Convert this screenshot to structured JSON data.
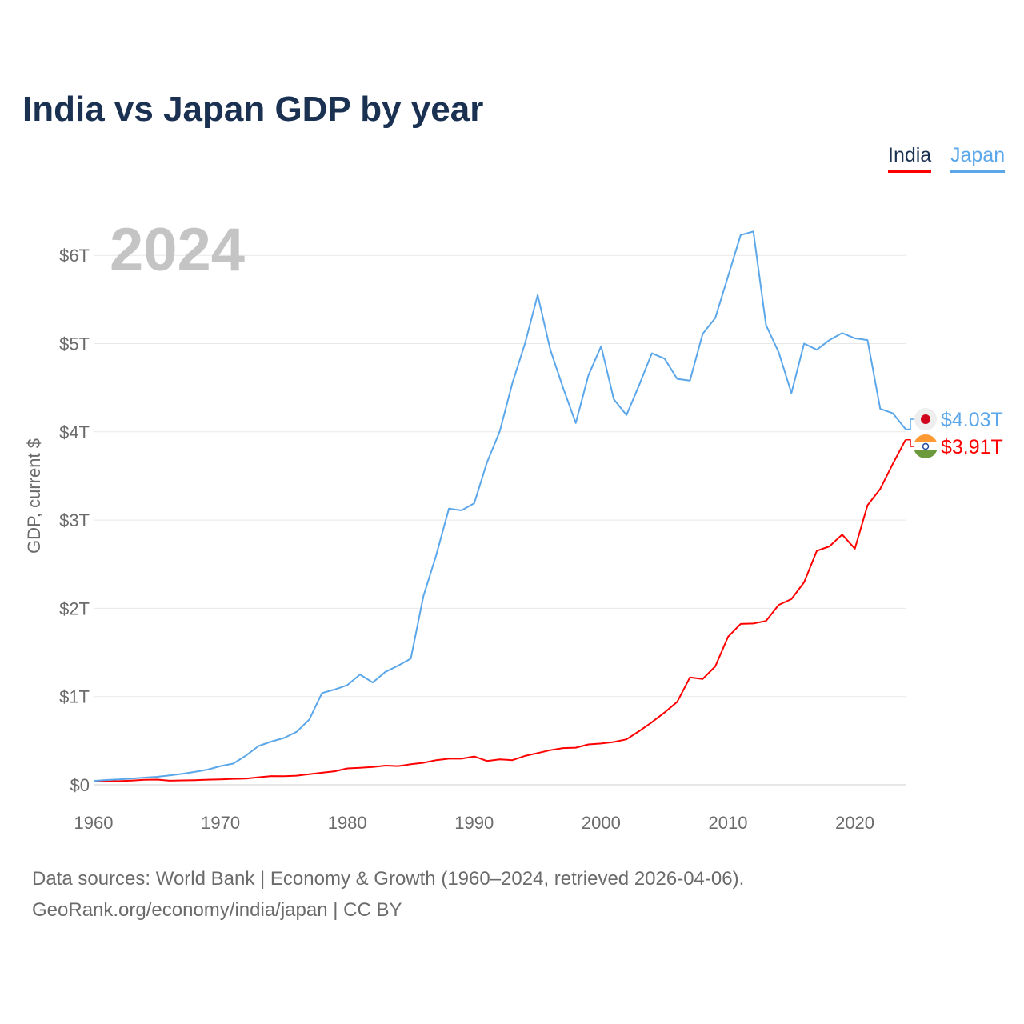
{
  "chart_data": {
    "type": "line",
    "title": "India vs Japan GDP by year",
    "year_label": "2024",
    "xlabel": "",
    "ylabel": "GDP, current $",
    "xlim": [
      1960,
      2024
    ],
    "ylim": [
      0,
      6.3
    ],
    "x_ticks": [
      1960,
      1970,
      1980,
      1990,
      2000,
      2010,
      2020
    ],
    "y_ticks": [
      0,
      1,
      2,
      3,
      4,
      5,
      6
    ],
    "y_tick_labels": [
      "$0",
      "$1T",
      "$2T",
      "$3T",
      "$4T",
      "$5T",
      "$6T"
    ],
    "grid": true,
    "legend_position": "top-right",
    "x": [
      1960,
      1961,
      1962,
      1963,
      1964,
      1965,
      1966,
      1967,
      1968,
      1969,
      1970,
      1971,
      1972,
      1973,
      1974,
      1975,
      1976,
      1977,
      1978,
      1979,
      1980,
      1981,
      1982,
      1983,
      1984,
      1985,
      1986,
      1987,
      1988,
      1989,
      1990,
      1991,
      1992,
      1993,
      1994,
      1995,
      1996,
      1997,
      1998,
      1999,
      2000,
      2001,
      2002,
      2003,
      2004,
      2005,
      2006,
      2007,
      2008,
      2009,
      2010,
      2011,
      2012,
      2013,
      2014,
      2015,
      2016,
      2017,
      2018,
      2019,
      2020,
      2021,
      2022,
      2023,
      2024
    ],
    "series": [
      {
        "name": "India",
        "color": "#ff0000",
        "end_label": "$3.91T",
        "values": [
          0.037,
          0.039,
          0.042,
          0.048,
          0.056,
          0.059,
          0.046,
          0.05,
          0.053,
          0.058,
          0.062,
          0.067,
          0.071,
          0.085,
          0.099,
          0.098,
          0.103,
          0.121,
          0.137,
          0.153,
          0.186,
          0.193,
          0.201,
          0.218,
          0.212,
          0.233,
          0.249,
          0.279,
          0.296,
          0.296,
          0.321,
          0.27,
          0.288,
          0.279,
          0.327,
          0.36,
          0.393,
          0.416,
          0.421,
          0.458,
          0.468,
          0.485,
          0.515,
          0.608,
          0.709,
          0.82,
          0.94,
          1.217,
          1.199,
          1.342,
          1.676,
          1.823,
          1.828,
          1.857,
          2.039,
          2.104,
          2.295,
          2.651,
          2.702,
          2.836,
          2.675,
          3.168,
          3.354,
          3.639,
          3.91
        ]
      },
      {
        "name": "Japan",
        "color": "#5ba7ea",
        "end_label": "$4.03T",
        "values": [
          0.044,
          0.054,
          0.061,
          0.07,
          0.082,
          0.091,
          0.106,
          0.124,
          0.147,
          0.172,
          0.212,
          0.24,
          0.33,
          0.44,
          0.49,
          0.53,
          0.6,
          0.74,
          1.04,
          1.08,
          1.13,
          1.25,
          1.16,
          1.28,
          1.35,
          1.43,
          2.14,
          2.6,
          3.13,
          3.11,
          3.19,
          3.65,
          4.0,
          4.55,
          5.0,
          5.55,
          4.93,
          4.5,
          4.1,
          4.64,
          4.97,
          4.37,
          4.19,
          4.53,
          4.89,
          4.83,
          4.6,
          4.58,
          5.11,
          5.29,
          5.76,
          6.23,
          6.27,
          5.21,
          4.9,
          4.44,
          5.0,
          4.93,
          5.04,
          5.12,
          5.06,
          5.04,
          4.26,
          4.21,
          4.03
        ]
      }
    ]
  },
  "footer": {
    "line1": "Data sources: World Bank | Economy & Growth (1960–2024, retrieved 2026-04-06).",
    "line2": "GeoRank.org/economy/india/japan | CC BY"
  }
}
